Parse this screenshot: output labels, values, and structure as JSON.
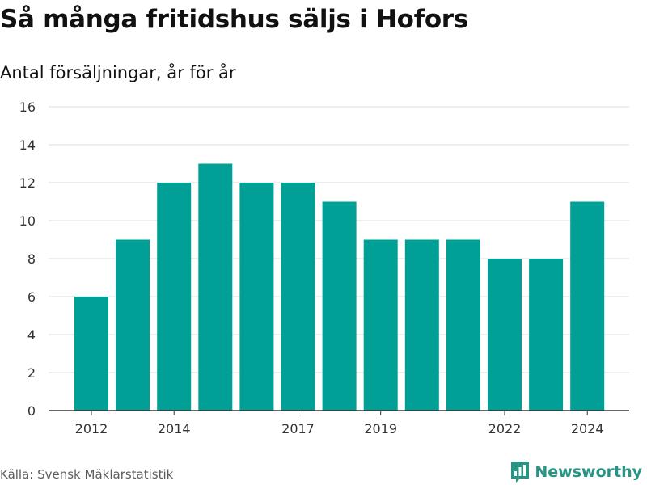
{
  "title": "Så många fritidshus säljs i Hofors",
  "subtitle": "Antal försäljningar, år för år",
  "source": "Källa: Svensk Mäklarstatistik",
  "brand": "Newsworthy",
  "colors": {
    "bar": "#00a096",
    "brand": "#2a9484",
    "grid": "#dddddd",
    "axis": "#333333"
  },
  "chart_data": {
    "type": "bar",
    "x": [
      2012,
      2013,
      2014,
      2015,
      2016,
      2017,
      2018,
      2019,
      2020,
      2021,
      2022,
      2023,
      2024
    ],
    "values": [
      6,
      9,
      12,
      13,
      12,
      12,
      11,
      9,
      9,
      9,
      8,
      8,
      11
    ],
    "xticks": [
      2012,
      2014,
      2017,
      2019,
      2022,
      2024
    ],
    "yticks": [
      0,
      2,
      4,
      6,
      8,
      10,
      12,
      14,
      16
    ],
    "ylim": [
      0,
      16
    ],
    "grid": true,
    "legend": "none"
  }
}
